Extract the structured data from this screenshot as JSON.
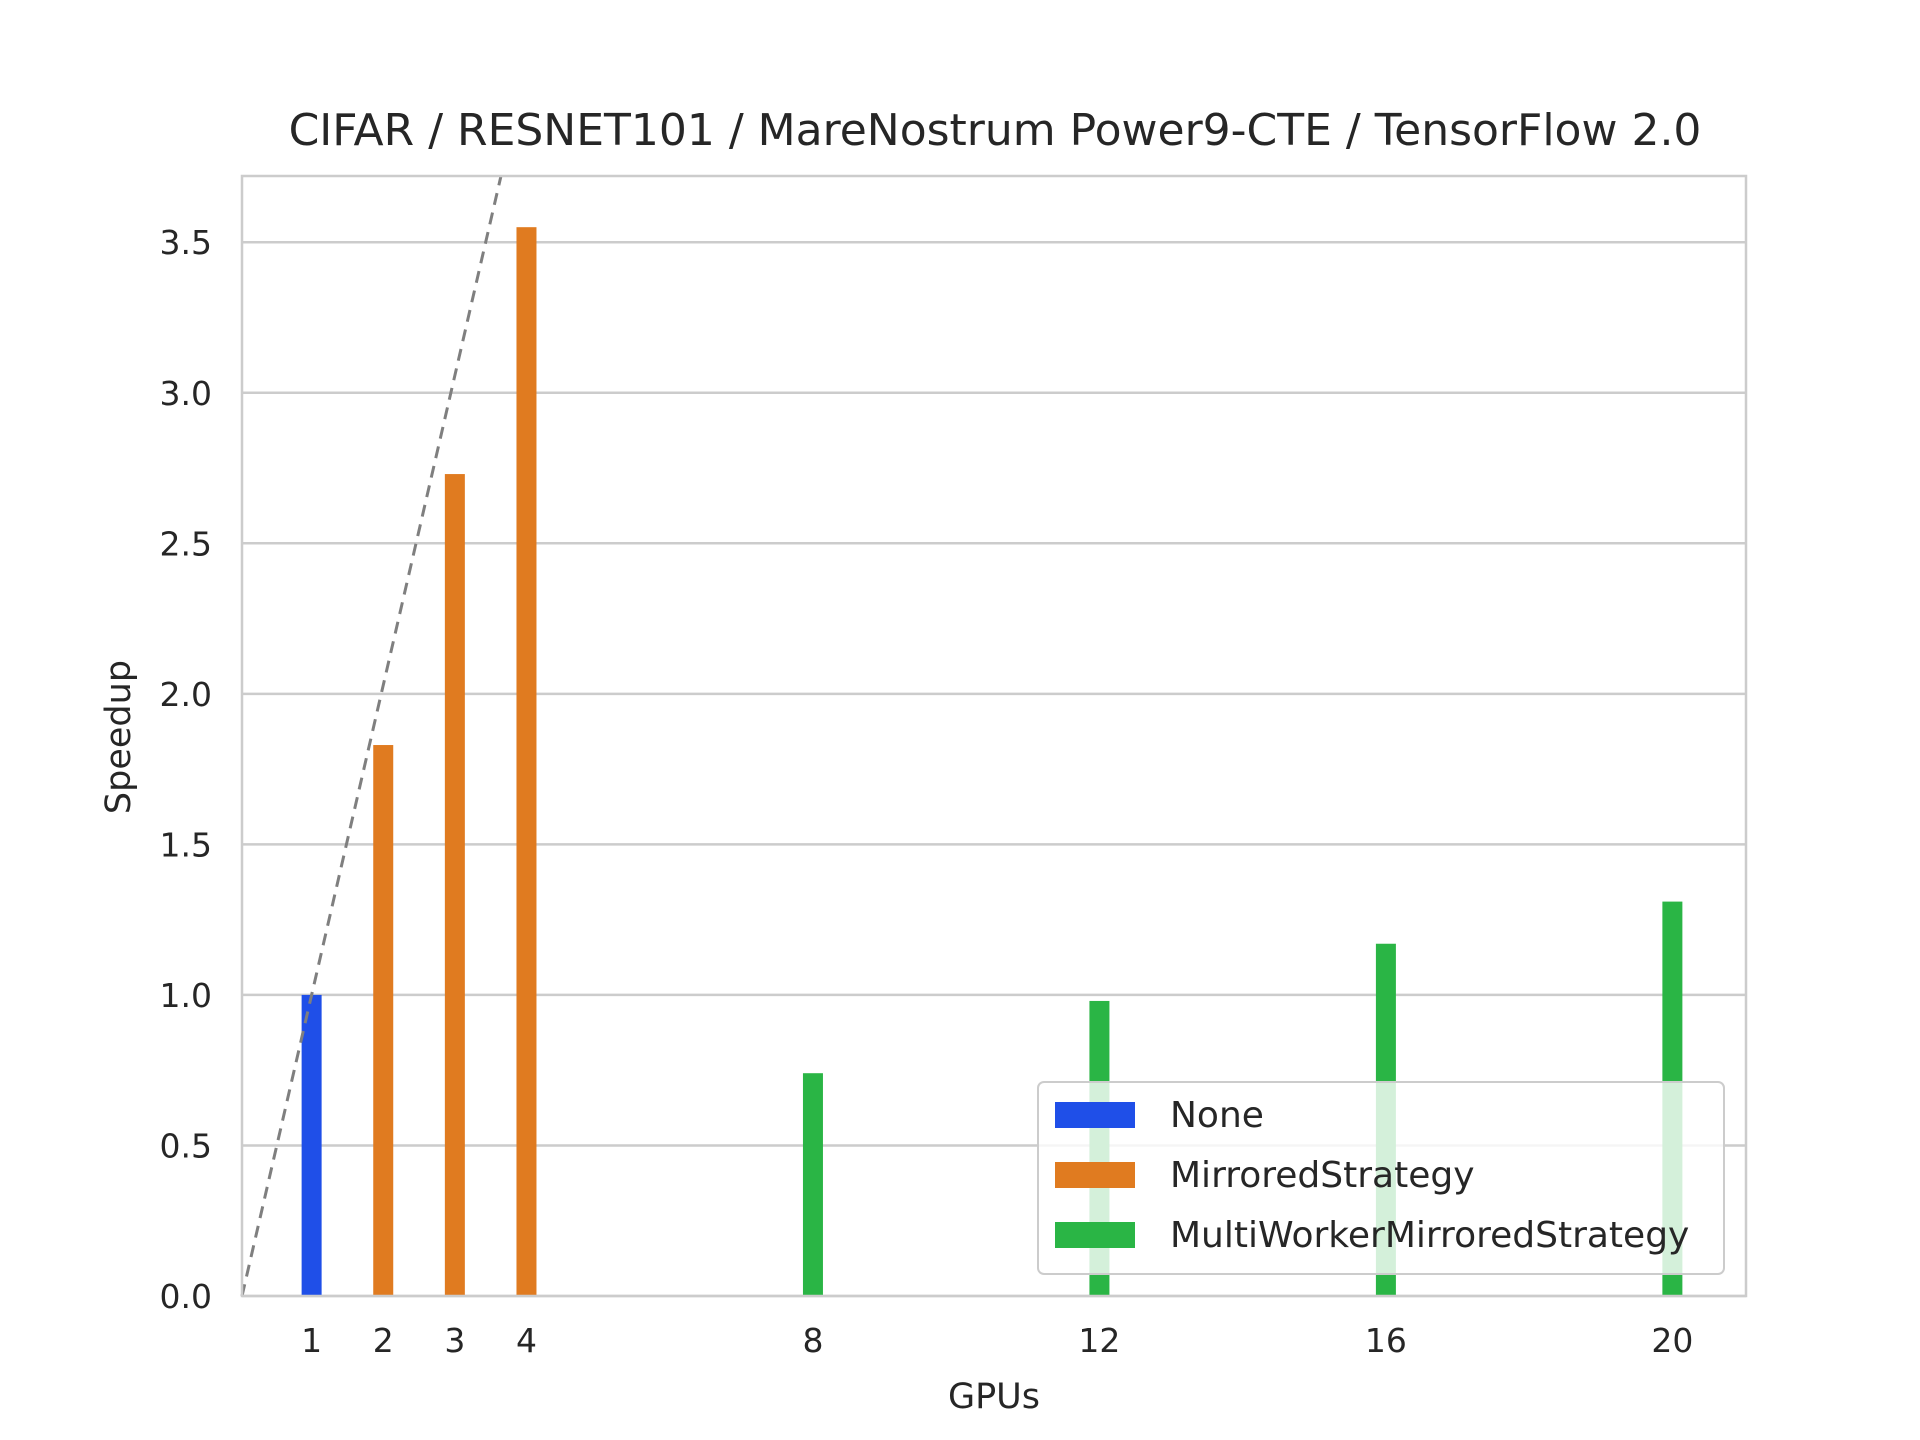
{
  "chart_data": {
    "type": "bar",
    "title": "CIFAR / RESNET101 / MareNostrum Power9-CTE / TensorFlow 2.0",
    "xlabel": "GPUs",
    "ylabel": "Speedup",
    "x_categories": [
      "1",
      "2",
      "3",
      "4",
      "8",
      "12",
      "16",
      "20"
    ],
    "x_values": [
      1,
      2,
      3,
      4,
      8,
      12,
      16,
      20
    ],
    "ylim": [
      0,
      3.72
    ],
    "yticks": [
      "0.0",
      "0.5",
      "1.0",
      "1.5",
      "2.0",
      "2.5",
      "3.0",
      "3.5"
    ],
    "grid": "horizontal",
    "ideal_line": {
      "style": "dashed",
      "color": "#7f7f7f",
      "slope": 1
    },
    "series": [
      {
        "name": "None",
        "color": "#1f4fe8",
        "points": [
          {
            "x": 1,
            "y": 1.0
          }
        ]
      },
      {
        "name": "MirroredStrategy",
        "color": "#e07b20",
        "points": [
          {
            "x": 2,
            "y": 1.83
          },
          {
            "x": 3,
            "y": 2.73
          },
          {
            "x": 4,
            "y": 3.55
          }
        ]
      },
      {
        "name": "MultiWorkerMirroredStrategy",
        "color": "#2ab545",
        "points": [
          {
            "x": 8,
            "y": 0.74
          },
          {
            "x": 12,
            "y": 0.98
          },
          {
            "x": 16,
            "y": 1.17
          },
          {
            "x": 20,
            "y": 1.31
          }
        ]
      }
    ],
    "legend": {
      "position": "lower-right"
    }
  }
}
